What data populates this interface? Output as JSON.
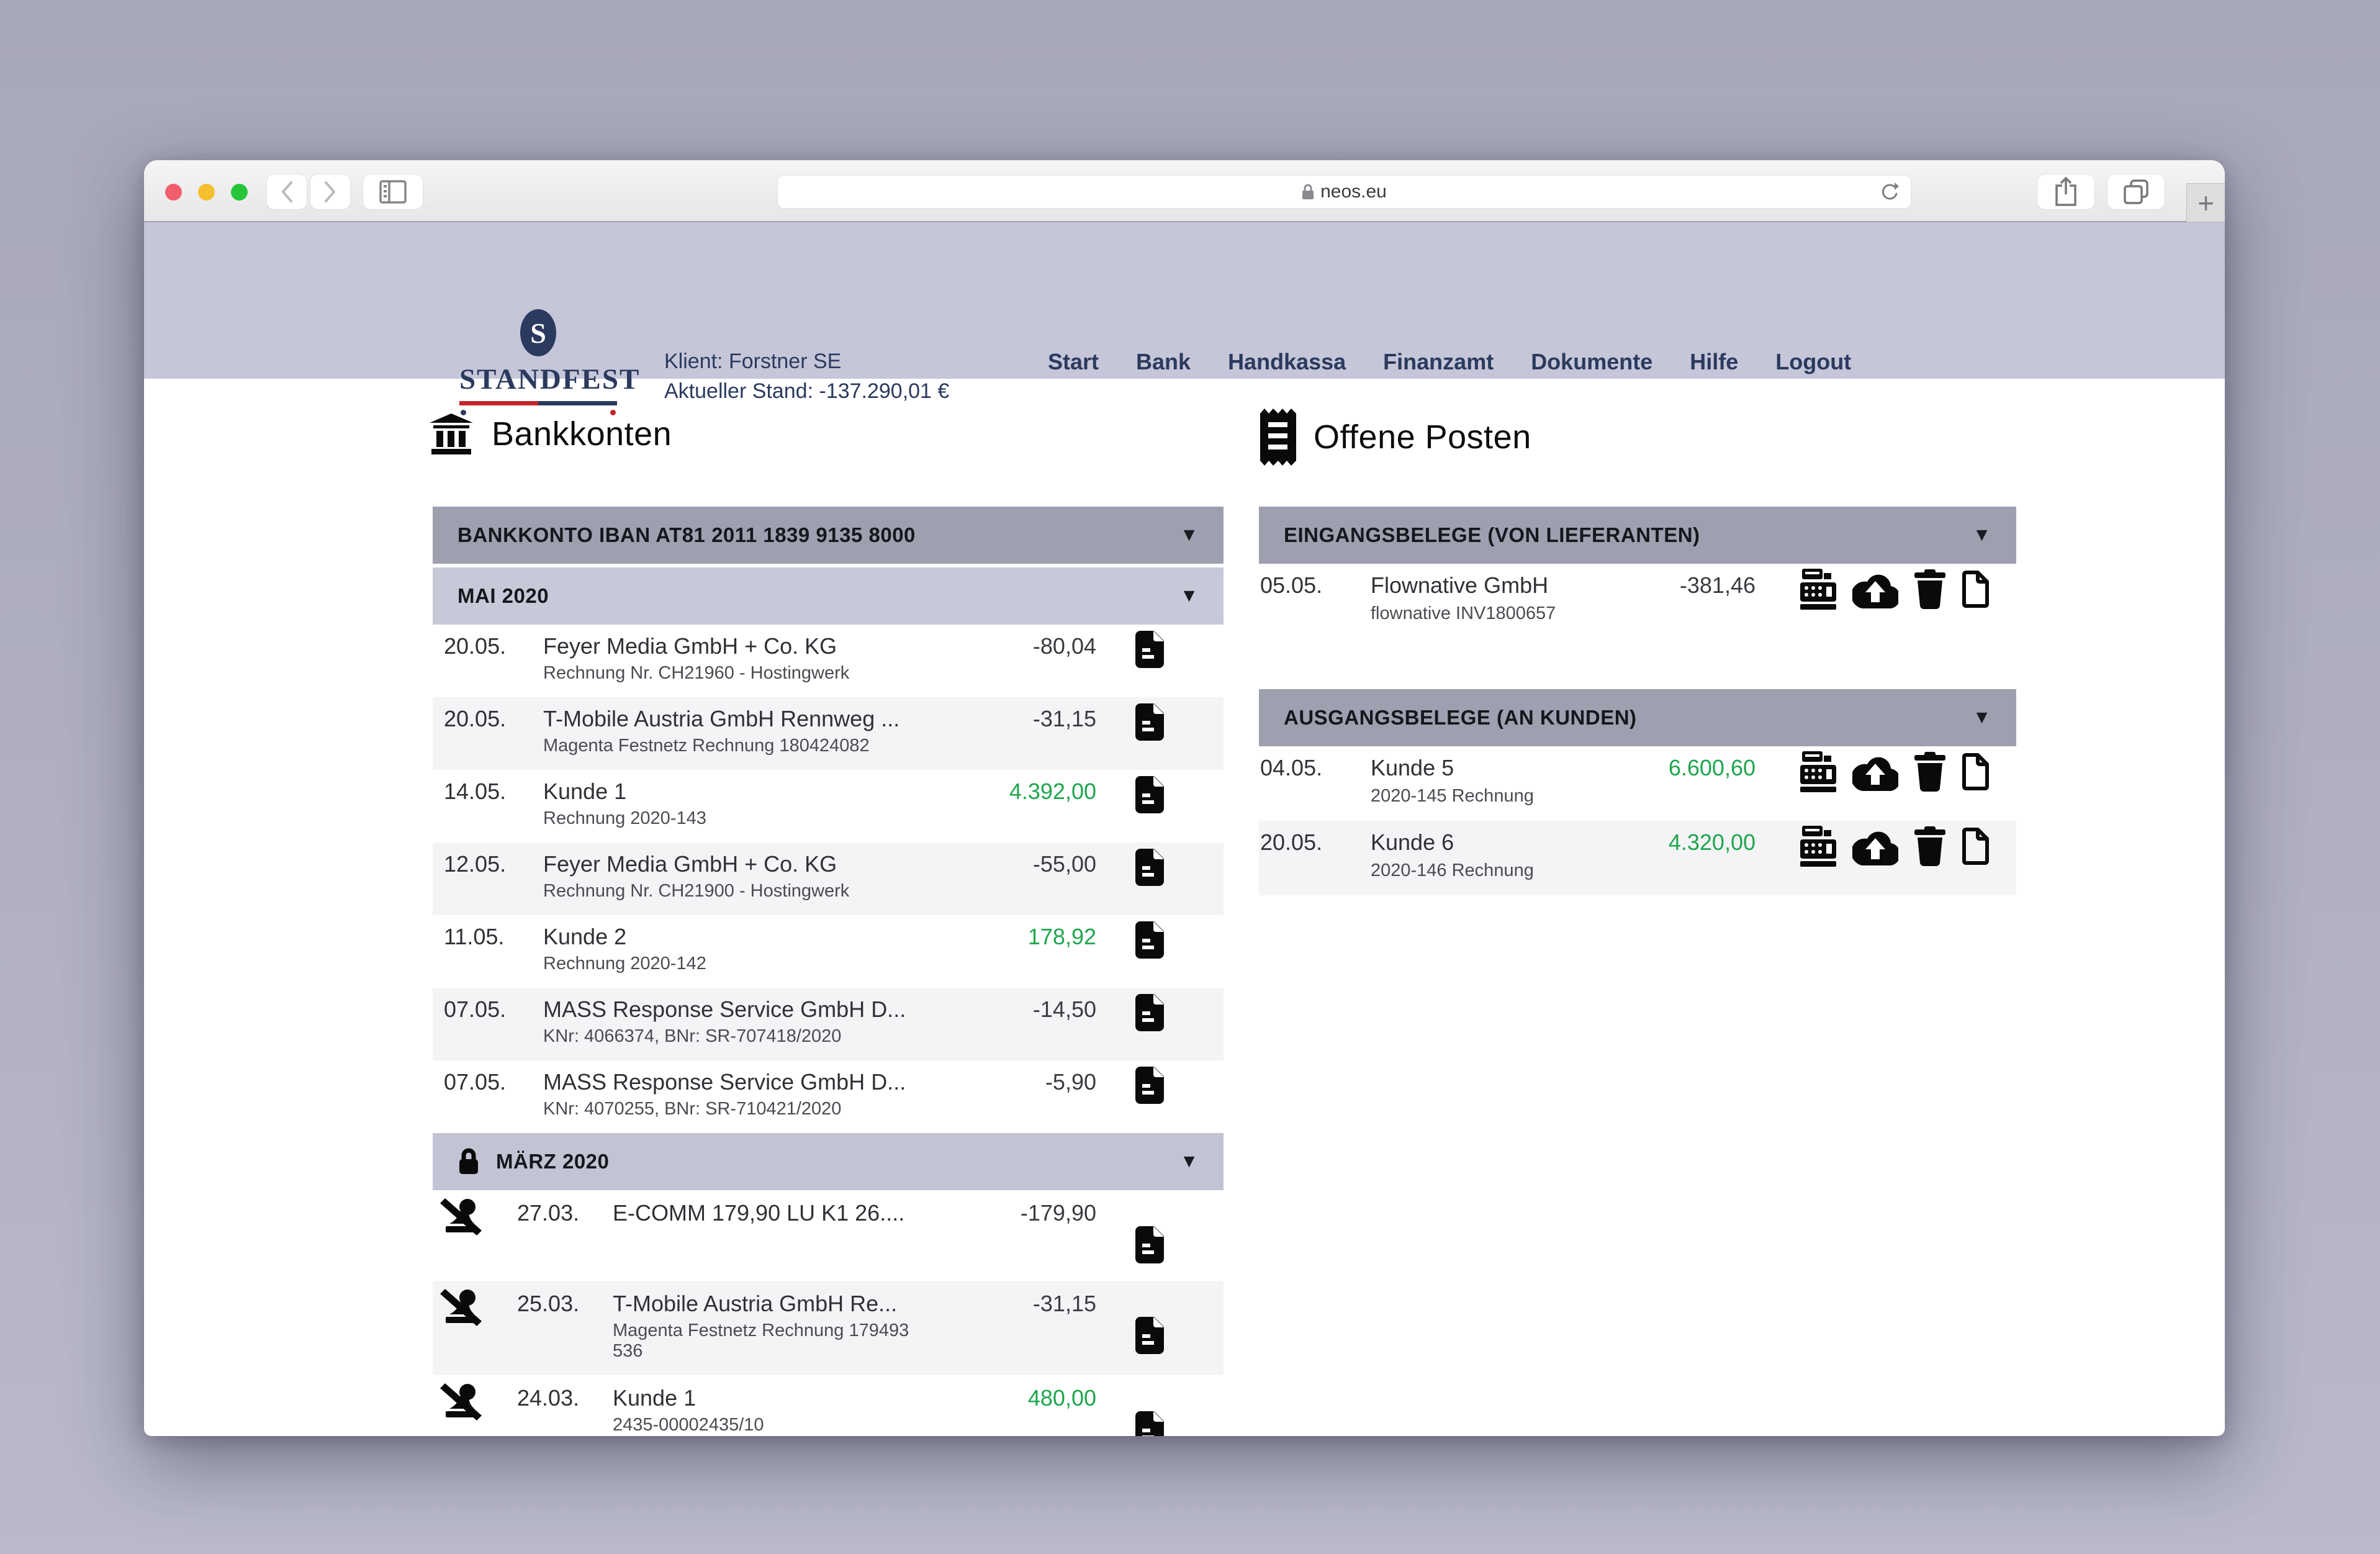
{
  "browser": {
    "url": "neos.eu",
    "new_tab_label": "+"
  },
  "header": {
    "logo_letter": "S",
    "logo_word": "STANDFEST",
    "client": "Klient: Forstner SE",
    "balance": "Aktueller Stand: -137.290,01 €",
    "nav": [
      {
        "label": "Start"
      },
      {
        "label": "Bank"
      },
      {
        "label": "Handkassa"
      },
      {
        "label": "Finanzamt"
      },
      {
        "label": "Dokumente"
      },
      {
        "label": "Hilfe"
      },
      {
        "label": "Logout"
      }
    ]
  },
  "bank_panel": {
    "title": "Bankkonten",
    "account_header": "BANKKONTO IBAN AT81 2011 1839 9135 8000",
    "sections": [
      {
        "label": "MAI 2020",
        "locked": false,
        "rows": [
          {
            "date": "20.05.",
            "name": "Feyer Media GmbH + Co. KG",
            "sub": "Rechnung Nr. CH21960 - Hostingwerk",
            "amount": "-80,04",
            "positive": false
          },
          {
            "date": "20.05.",
            "name": "T-Mobile Austria GmbH Rennweg ...",
            "sub": "Magenta Festnetz Rechnung 180424082",
            "amount": "-31,15",
            "positive": false
          },
          {
            "date": "14.05.",
            "name": "Kunde 1",
            "sub": "Rechnung 2020-143",
            "amount": "4.392,00",
            "positive": true
          },
          {
            "date": "12.05.",
            "name": "Feyer Media GmbH + Co. KG",
            "sub": "Rechnung Nr. CH21900 - Hostingwerk",
            "amount": "-55,00",
            "positive": false
          },
          {
            "date": "11.05.",
            "name": "Kunde 2",
            "sub": "Rechnung 2020-142",
            "amount": "178,92",
            "positive": true
          },
          {
            "date": "07.05.",
            "name": "MASS Response Service GmbH D...",
            "sub": "KNr: 4066374, BNr: SR-707418/2020",
            "amount": "-14,50",
            "positive": false
          },
          {
            "date": "07.05.",
            "name": "MASS Response Service GmbH D...",
            "sub": "KNr: 4070255, BNr: SR-710421/2020",
            "amount": "-5,90",
            "positive": false
          }
        ]
      },
      {
        "label": "MÄRZ 2020",
        "locked": true,
        "rows": [
          {
            "date": "27.03.",
            "name": "E-COMM 179,90 LU K1 26....",
            "sub": "",
            "amount": "-179,90",
            "positive": false
          },
          {
            "date": "25.03.",
            "name": "T-Mobile Austria GmbH Re...",
            "sub": "Magenta Festnetz Rechnung 179493 536",
            "amount": "-31,15",
            "positive": false
          },
          {
            "date": "24.03.",
            "name": "Kunde 1",
            "sub": "2435-00002435/10",
            "amount": "480,00",
            "positive": true
          }
        ]
      }
    ]
  },
  "open_items_panel": {
    "title": "Offene Posten",
    "sections": [
      {
        "label": "EINGANGSBELEGE (VON LIEFERANTEN)",
        "rows": [
          {
            "date": "05.05.",
            "name": "Flownative GmbH",
            "sub": "flownative INV1800657",
            "amount": "-381,46",
            "positive": false
          }
        ]
      },
      {
        "label": "AUSGANGSBELEGE (AN KUNDEN)",
        "rows": [
          {
            "date": "04.05.",
            "name": "Kunde 5",
            "sub": "2020-145 Rechnung",
            "amount": "6.600,60",
            "positive": true
          },
          {
            "date": "20.05.",
            "name": "Kunde 6",
            "sub": "2020-146 Rechnung",
            "amount": "4.320,00",
            "positive": true
          }
        ]
      }
    ]
  },
  "icons": {
    "row_actions": [
      "cash-register-icon",
      "cloud-upload-icon",
      "trash-icon",
      "document-blank-icon"
    ],
    "dropdown_glyph": "▼"
  },
  "colors": {
    "accent_navy": "#2b3a5e",
    "positive_green": "#1ea64d",
    "band_dark": "#9ea0b0",
    "band_light": "#c8c9d8",
    "band_locked": "#c2c3d3",
    "header_lavender": "#c5c6d8",
    "logo_red": "#c4242b",
    "traffic_red": "#f25e6b",
    "traffic_yellow": "#f5c02f",
    "traffic_green": "#25c63a"
  }
}
